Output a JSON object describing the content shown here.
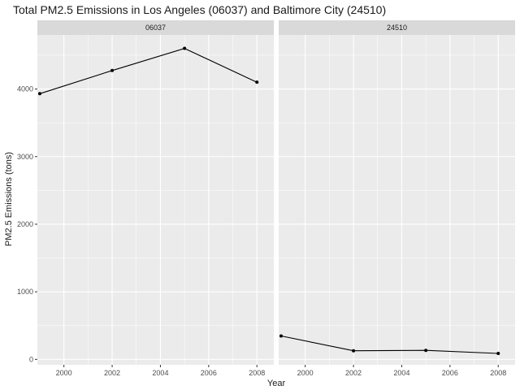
{
  "chart_data": {
    "type": "line",
    "title": "Total PM2.5 Emissions in Los Angeles (06037) and Baltimore City (24510)",
    "xlabel": "Year",
    "ylabel": "PM2.5 Emissions (tons)",
    "x": [
      1999,
      2002,
      2005,
      2008
    ],
    "xlim": [
      1998.9,
      2008.7
    ],
    "ylim": [
      -80,
      4800
    ],
    "xticks": [
      2000,
      2002,
      2004,
      2006,
      2008
    ],
    "yticks": [
      0,
      1000,
      2000,
      3000,
      4000
    ],
    "grid": true,
    "facets": [
      {
        "label": "06037",
        "values": [
          3931,
          4274,
          4601,
          4101
        ]
      },
      {
        "label": "24510",
        "values": [
          347,
          128,
          134,
          88
        ]
      }
    ],
    "colors": {
      "panel_background": "#ebebeb",
      "strip_background": "#d9d9d9",
      "grid_line": "#ffffff",
      "series_line": "#000000"
    }
  }
}
